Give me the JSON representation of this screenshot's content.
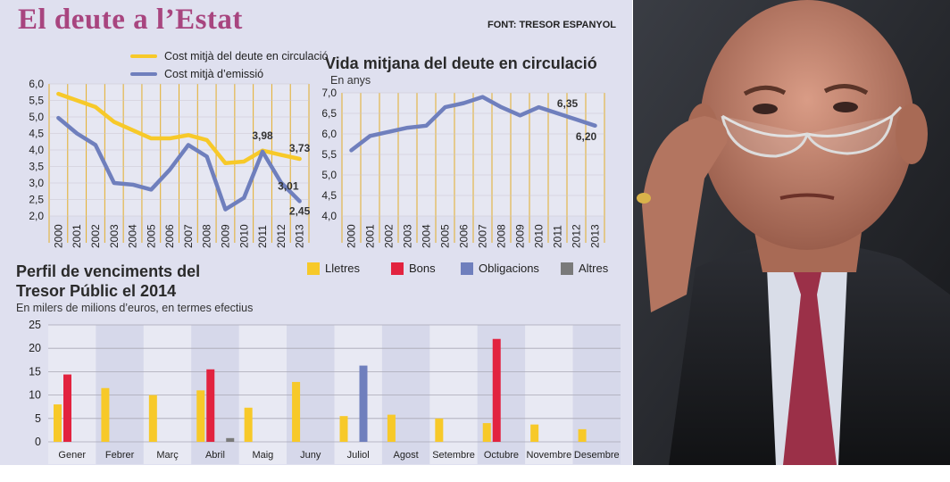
{
  "header": {
    "title": "El deute a l’Estat",
    "source": "FONT: TRESOR ESPANYOL"
  },
  "colors": {
    "yellow": "#f7c929",
    "blue": "#6f7fbd",
    "red": "#e2233f",
    "grey": "#7a7a7a",
    "panel_bg": "#dfe0ef",
    "grid_line": "#e3ae2a",
    "title": "#a8457f"
  },
  "chart_data": [
    {
      "type": "line",
      "title": "",
      "x": [
        "2000",
        "2001",
        "2002",
        "2003",
        "2004",
        "2005",
        "2006",
        "2007",
        "2008",
        "2009",
        "2010",
        "2011",
        "2012",
        "2013"
      ],
      "ylim": [
        2.0,
        6.0
      ],
      "yticks": [
        "6,0",
        "5,5",
        "5,0",
        "4,5",
        "4,0",
        "3,5",
        "3,0",
        "2,5",
        "2,0"
      ],
      "series": [
        {
          "name": "Cost mitjà del deute en circulació",
          "color": "#f7c929",
          "values": [
            5.7,
            5.5,
            5.3,
            4.85,
            4.6,
            4.35,
            4.35,
            4.45,
            4.3,
            3.6,
            3.65,
            3.98,
            3.85,
            3.73
          ]
        },
        {
          "name": "Cost mitjà d’emissió",
          "color": "#6f7fbd",
          "values": [
            4.97,
            4.5,
            4.15,
            3.0,
            2.95,
            2.8,
            3.4,
            4.15,
            3.8,
            2.2,
            2.55,
            3.95,
            3.01,
            2.45
          ]
        }
      ],
      "labels": [
        {
          "text": "3,98"
        },
        {
          "text": "3,73"
        },
        {
          "text": "3,01"
        },
        {
          "text": "2,45"
        }
      ]
    },
    {
      "type": "line",
      "title": "Vida mitjana del deute en circulació",
      "ylabel": "En anys",
      "x": [
        "2000",
        "2001",
        "2002",
        "2003",
        "2004",
        "2005",
        "2006",
        "2007",
        "2008",
        "2009",
        "2010",
        "2011",
        "2012",
        "2013"
      ],
      "ylim": [
        4.0,
        7.0
      ],
      "yticks": [
        "7,0",
        "6,5",
        "6,0",
        "5,5",
        "5,0",
        "4,5",
        "4,0"
      ],
      "series": [
        {
          "name": "",
          "color": "#6f7fbd",
          "values": [
            5.6,
            5.95,
            6.05,
            6.15,
            6.2,
            6.65,
            6.75,
            6.9,
            6.65,
            6.45,
            6.65,
            6.5,
            6.35,
            6.2
          ]
        }
      ],
      "labels": [
        {
          "text": "6,35"
        },
        {
          "text": "6,20"
        }
      ]
    },
    {
      "type": "bar",
      "title": "Perfil de venciments del Tresor Públic el 2014",
      "subtitle": "En milers de milions d’euros, en termes efectius",
      "categories": [
        "Gener",
        "Febrer",
        "Març",
        "Abril",
        "Maig",
        "Juny",
        "Juliol",
        "Agost",
        "Setembre",
        "Octubre",
        "Novembre",
        "Desembre"
      ],
      "ylim": [
        0,
        25
      ],
      "yticks": [
        "25",
        "20",
        "15",
        "10",
        "5",
        "0"
      ],
      "series": [
        {
          "name": "Lletres",
          "color": "#f7c929",
          "values": [
            8,
            11.5,
            10,
            11,
            7.3,
            12.8,
            5.5,
            5.8,
            5,
            4,
            3.7,
            2.7
          ]
        },
        {
          "name": "Bons",
          "color": "#e2233f",
          "values": [
            14.4,
            0,
            0,
            15.5,
            0,
            0,
            0,
            0,
            0,
            22,
            0,
            0
          ]
        },
        {
          "name": "Obligacions",
          "color": "#6f7fbd",
          "values": [
            0,
            0,
            0,
            0,
            0,
            0,
            16.3,
            0,
            0,
            0,
            0,
            0
          ]
        },
        {
          "name": "Altres",
          "color": "#7a7a7a",
          "values": [
            0,
            0,
            0,
            0.8,
            0,
            0,
            0,
            0,
            0,
            0,
            0,
            0
          ]
        }
      ]
    }
  ]
}
